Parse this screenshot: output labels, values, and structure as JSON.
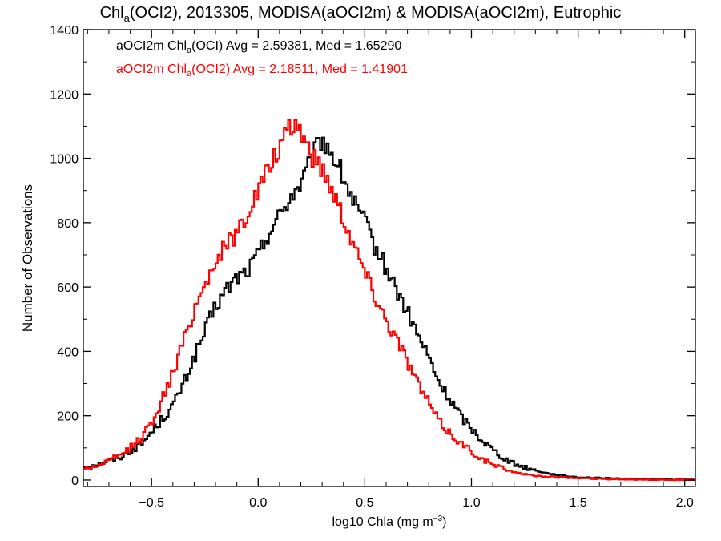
{
  "chart_data": {
    "type": "histogram",
    "title": {
      "pre": "Chl",
      "sub": "a",
      "post": "(OCI2), 2013305, MODISA(aOCI2m) & MODISA(aOCI2m), Eutrophic"
    },
    "xlabel": {
      "pre": "log10 Chla (mg m",
      "sup": "−3",
      "post": ")"
    },
    "ylabel": "Number of Observations",
    "xlim": [
      -0.82,
      2.05
    ],
    "ylim": [
      -20,
      1400
    ],
    "x_ticks": [
      -0.5,
      0.0,
      0.5,
      1.0,
      1.5,
      2.0
    ],
    "x_tick_labels": [
      "−0.5",
      "0.0",
      "0.5",
      "1.0",
      "1.5",
      "2.0"
    ],
    "y_ticks": [
      0,
      200,
      400,
      600,
      800,
      1000,
      1200,
      1400
    ],
    "y_tick_labels": [
      "0",
      "200",
      "400",
      "600",
      "800",
      "1000",
      "1200",
      "1400"
    ],
    "grid": false,
    "legend": [
      {
        "pre": "aOCI2m Chl",
        "sub": "a",
        "post": "(OCI) Avg = 2.59381, Med = 1.65290",
        "color": "#000000"
      },
      {
        "pre": "aOCI2m Chl",
        "sub": "a",
        "post": "(OCI2) Avg = 2.18511, Med = 1.41901",
        "color": "#ff0000"
      }
    ],
    "bin_width": 0.01,
    "series": [
      {
        "color": "#000000",
        "points": [
          [
            -0.82,
            40
          ],
          [
            -0.75,
            50
          ],
          [
            -0.7,
            60
          ],
          [
            -0.65,
            70
          ],
          [
            -0.6,
            90
          ],
          [
            -0.55,
            110
          ],
          [
            -0.5,
            150
          ],
          [
            -0.45,
            190
          ],
          [
            -0.4,
            230
          ],
          [
            -0.35,
            300
          ],
          [
            -0.3,
            380
          ],
          [
            -0.25,
            460
          ],
          [
            -0.2,
            540
          ],
          [
            -0.15,
            590
          ],
          [
            -0.1,
            630
          ],
          [
            -0.05,
            650
          ],
          [
            0.0,
            700
          ],
          [
            0.05,
            770
          ],
          [
            0.1,
            820
          ],
          [
            0.15,
            880
          ],
          [
            0.2,
            920
          ],
          [
            0.25,
            990
          ],
          [
            0.28,
            1040
          ],
          [
            0.3,
            1060
          ],
          [
            0.35,
            1010
          ],
          [
            0.4,
            940
          ],
          [
            0.45,
            860
          ],
          [
            0.5,
            800
          ],
          [
            0.55,
            720
          ],
          [
            0.6,
            660
          ],
          [
            0.65,
            590
          ],
          [
            0.7,
            520
          ],
          [
            0.75,
            450
          ],
          [
            0.8,
            380
          ],
          [
            0.85,
            300
          ],
          [
            0.9,
            250
          ],
          [
            0.95,
            200
          ],
          [
            1.0,
            160
          ],
          [
            1.05,
            125
          ],
          [
            1.1,
            95
          ],
          [
            1.15,
            70
          ],
          [
            1.2,
            50
          ],
          [
            1.25,
            40
          ],
          [
            1.3,
            30
          ],
          [
            1.35,
            22
          ],
          [
            1.4,
            16
          ],
          [
            1.45,
            12
          ],
          [
            1.5,
            9
          ],
          [
            1.6,
            6
          ],
          [
            1.7,
            4
          ],
          [
            1.8,
            3
          ],
          [
            1.9,
            2
          ],
          [
            2.0,
            1
          ],
          [
            2.05,
            1
          ]
        ]
      },
      {
        "color": "#ff0000",
        "points": [
          [
            -0.82,
            35
          ],
          [
            -0.75,
            45
          ],
          [
            -0.7,
            60
          ],
          [
            -0.65,
            75
          ],
          [
            -0.6,
            100
          ],
          [
            -0.55,
            130
          ],
          [
            -0.5,
            180
          ],
          [
            -0.45,
            250
          ],
          [
            -0.4,
            330
          ],
          [
            -0.35,
            430
          ],
          [
            -0.3,
            530
          ],
          [
            -0.25,
            610
          ],
          [
            -0.2,
            680
          ],
          [
            -0.15,
            730
          ],
          [
            -0.1,
            770
          ],
          [
            -0.05,
            830
          ],
          [
            0.0,
            900
          ],
          [
            0.05,
            970
          ],
          [
            0.1,
            1030
          ],
          [
            0.15,
            1090
          ],
          [
            0.18,
            1110
          ],
          [
            0.22,
            1060
          ],
          [
            0.25,
            1010
          ],
          [
            0.3,
            970
          ],
          [
            0.35,
            900
          ],
          [
            0.4,
            820
          ],
          [
            0.45,
            730
          ],
          [
            0.5,
            650
          ],
          [
            0.55,
            570
          ],
          [
            0.6,
            500
          ],
          [
            0.65,
            440
          ],
          [
            0.7,
            370
          ],
          [
            0.75,
            300
          ],
          [
            0.8,
            240
          ],
          [
            0.85,
            180
          ],
          [
            0.9,
            145
          ],
          [
            0.95,
            115
          ],
          [
            1.0,
            90
          ],
          [
            1.05,
            65
          ],
          [
            1.1,
            48
          ],
          [
            1.15,
            35
          ],
          [
            1.2,
            25
          ],
          [
            1.25,
            18
          ],
          [
            1.3,
            13
          ],
          [
            1.4,
            9
          ],
          [
            1.5,
            6
          ],
          [
            1.6,
            4
          ],
          [
            1.7,
            3
          ],
          [
            1.8,
            2
          ],
          [
            1.9,
            1
          ],
          [
            2.0,
            1
          ],
          [
            2.05,
            1
          ]
        ]
      }
    ]
  }
}
